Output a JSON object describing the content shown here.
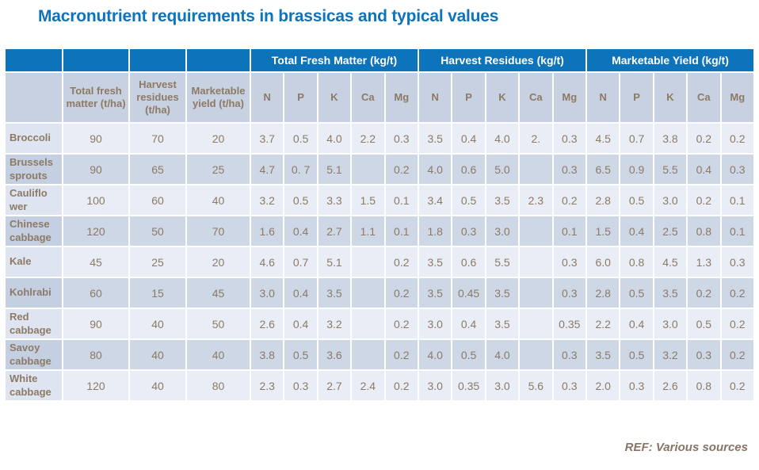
{
  "title": "Macronutrient requirements in brassicas and typical values",
  "footer": {
    "ref_text": "REF: Various sources"
  },
  "colors": {
    "title_blue": "#0d73bb",
    "header_blue": "#0d73bb",
    "subheader_bg": "#c7d1e1",
    "row_light": "#e9edf6",
    "row_dark": "#cdd7e6",
    "row_light_first": "#dfe5f0",
    "row_dark_first": "#c4cfe1",
    "text_brown": "#8c7a66",
    "ref_gray": "#867567"
  },
  "table": {
    "group_headers": [
      {
        "label": "Total Fresh Matter (kg/t)",
        "span": 5
      },
      {
        "label": "Harvest Residues (kg/t)",
        "span": 5
      },
      {
        "label": "Marketable Yield (kg/t)",
        "span": 5
      }
    ],
    "subheaders": [
      "",
      "Total fresh matter (t/ha)",
      "Harvest residues (t/ha)",
      "Marketable yield (t/ha)",
      "N",
      "P",
      "K",
      "Ca",
      "Mg",
      "N",
      "P",
      "K",
      "Ca",
      "Mg",
      "N",
      "P",
      "K",
      "Ca",
      "Mg"
    ],
    "rows": [
      {
        "name": "Broccoli",
        "values": [
          "90",
          "70",
          "20",
          "3.7",
          "0.5",
          "4.0",
          "2.2",
          "0.3",
          "3.5",
          "0.4",
          "4.0",
          "2.",
          "0.3",
          "4.5",
          "0.7",
          "3.8",
          "0.2",
          "0.2"
        ]
      },
      {
        "name": "Brussels sprouts",
        "values": [
          "90",
          "65",
          "25",
          "4.7",
          "0. 7",
          "5.1",
          "",
          "0.2",
          "4.0",
          "0.6",
          "5.0",
          "",
          "0.3",
          "6.5",
          "0.9",
          "5.5",
          "0.4",
          "0.3"
        ]
      },
      {
        "name": "Cauliflo wer",
        "values": [
          "100",
          "60",
          "40",
          "3.2",
          "0.5",
          "3.3",
          "1.5",
          "0.1",
          "3.4",
          "0.5",
          "3.5",
          "2.3",
          "0.2",
          "2.8",
          "0.5",
          "3.0",
          "0.2",
          "0.1"
        ]
      },
      {
        "name": "Chinese cabbage",
        "values": [
          "120",
          "50",
          "70",
          "1.6",
          "0.4",
          "2.7",
          "1.1",
          "0.1",
          "1.8",
          "0.3",
          "3.0",
          "",
          "0.1",
          "1.5",
          "0.4",
          "2.5",
          "0.8",
          "0.1"
        ]
      },
      {
        "name": "Kale",
        "values": [
          "45",
          "25",
          "20",
          "4.6",
          "0.7",
          "5.1",
          "",
          "0.2",
          "3.5",
          "0.6",
          "5.5",
          "",
          "0.3",
          "6.0",
          "0.8",
          "4.5",
          "1.3",
          "0.3"
        ]
      },
      {
        "name": "Kohlrabi",
        "values": [
          "60",
          "15",
          "45",
          "3.0",
          "0.4",
          "3.5",
          "",
          "0.2",
          "3.5",
          "0.45",
          "3.5",
          "",
          "0.3",
          "2.8",
          "0.5",
          "3.5",
          "0.2",
          "0.2"
        ]
      },
      {
        "name": "Red cabbage",
        "values": [
          "90",
          "40",
          "50",
          "2.6",
          "0.4",
          "3.2",
          "",
          "0.2",
          "3.0",
          "0.4",
          "3.5",
          "",
          "0.35",
          "2.2",
          "0.4",
          "3.0",
          "0.5",
          "0.2"
        ]
      },
      {
        "name": "Savoy cabbage",
        "values": [
          "80",
          "40",
          "40",
          "3.8",
          "0.5",
          "3.6",
          "",
          "0.2",
          "4.0",
          "0.5",
          "4.0",
          "",
          "0.3",
          "3.5",
          "0.5",
          "3.2",
          "0.3",
          "0.2"
        ]
      },
      {
        "name": "White cabbage",
        "values": [
          "120",
          "40",
          "80",
          "2.3",
          "0.3",
          "2.7",
          "2.4",
          "0.2",
          "3.0",
          "0.35",
          "3.0",
          "5.6",
          "0.3",
          "2.0",
          "0.3",
          "2.6",
          "0.8",
          "0.2"
        ]
      }
    ]
  }
}
